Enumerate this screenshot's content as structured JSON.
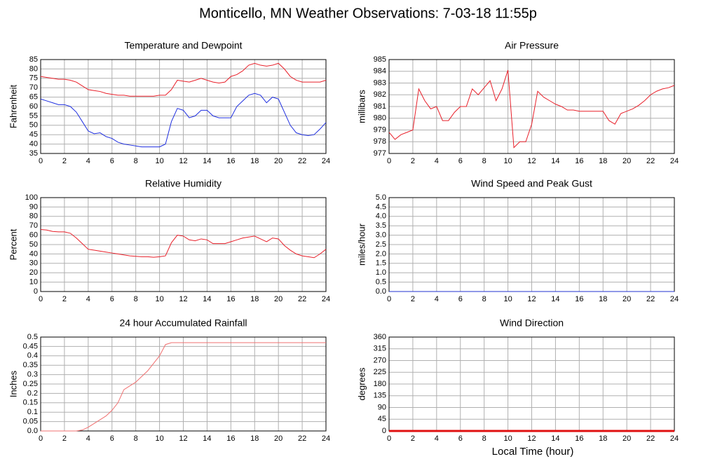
{
  "title": "Monticello, MN Weather Observations: 7-03-18 11:55p",
  "xlabel": "Local Time (hour)",
  "chart_data": [
    {
      "type": "line",
      "title": "Temperature and Dewpoint",
      "ylabel": "Fahrenheit",
      "grid": true,
      "xlim": [
        0,
        24
      ],
      "xticks": [
        0,
        2,
        4,
        6,
        8,
        10,
        12,
        14,
        16,
        18,
        20,
        22,
        24
      ],
      "ylim": [
        35,
        85
      ],
      "yticks": [
        35,
        40,
        45,
        50,
        55,
        60,
        65,
        70,
        75,
        80,
        85
      ],
      "x": [
        0,
        0.5,
        1,
        1.5,
        2,
        2.5,
        3,
        3.5,
        4,
        4.5,
        5,
        5.5,
        6,
        6.5,
        7,
        7.5,
        8,
        8.5,
        9,
        9.5,
        10,
        10.5,
        11,
        11.5,
        12,
        12.5,
        13,
        13.5,
        14,
        14.5,
        15,
        15.5,
        16,
        16.5,
        17,
        17.5,
        18,
        18.5,
        19,
        19.5,
        20,
        20.5,
        21,
        21.5,
        22,
        22.5,
        23,
        23.5,
        24
      ],
      "series": [
        {
          "color": "#e8202a",
          "values": [
            76,
            75.5,
            75,
            74.5,
            74.5,
            74,
            73,
            71,
            69,
            68.5,
            68,
            67,
            66.5,
            66,
            66,
            65.5,
            65.5,
            65.5,
            65.5,
            65.5,
            66,
            66,
            69,
            74,
            73.5,
            73,
            74,
            75,
            74,
            73,
            72.5,
            73,
            76,
            77,
            79,
            82,
            83,
            82,
            81.5,
            82,
            83,
            80,
            76,
            74,
            73,
            73,
            73,
            73,
            74
          ]
        },
        {
          "color": "#1f2fe0",
          "values": [
            64,
            63,
            62,
            61,
            61,
            60,
            57,
            52,
            47,
            45.5,
            46,
            44,
            43,
            41,
            40,
            39.5,
            39,
            38.5,
            38.5,
            38.5,
            38.5,
            40,
            52,
            59,
            58,
            54,
            55,
            58,
            58,
            55,
            54,
            54,
            54,
            60,
            63,
            66,
            67,
            66,
            62,
            65,
            64,
            57,
            50,
            46,
            45,
            44.5,
            45,
            48,
            51.5
          ]
        }
      ]
    },
    {
      "type": "line",
      "title": "Air Pressure",
      "ylabel": "millibars",
      "grid": true,
      "xlim": [
        0,
        24
      ],
      "xticks": [
        0,
        2,
        4,
        6,
        8,
        10,
        12,
        14,
        16,
        18,
        20,
        22,
        24
      ],
      "ylim": [
        977,
        985
      ],
      "yticks": [
        977,
        978,
        979,
        980,
        981,
        982,
        983,
        984,
        985
      ],
      "x": [
        0,
        0.5,
        1,
        1.5,
        2,
        2.5,
        3,
        3.5,
        4,
        4.5,
        5,
        5.5,
        6,
        6.5,
        7,
        7.5,
        8,
        8.5,
        9,
        9.5,
        10,
        10.5,
        11,
        11.5,
        12,
        12.5,
        13,
        13.5,
        14,
        14.5,
        15,
        15.5,
        16,
        16.5,
        17,
        17.5,
        18,
        18.5,
        19,
        19.5,
        20,
        20.5,
        21,
        21.5,
        22,
        22.5,
        23,
        23.5,
        24
      ],
      "series": [
        {
          "color": "#e8202a",
          "values": [
            978.8,
            978.2,
            978.6,
            978.8,
            979,
            982.5,
            981.5,
            980.8,
            981,
            979.8,
            979.8,
            980.5,
            981,
            981,
            982.5,
            982,
            982.6,
            983.2,
            981.5,
            982.5,
            984.1,
            977.5,
            978,
            978,
            979.5,
            982.3,
            981.8,
            981.5,
            981.2,
            981,
            980.7,
            980.7,
            980.6,
            980.6,
            980.6,
            980.6,
            980.6,
            979.8,
            979.5,
            980.4,
            980.6,
            980.8,
            981.1,
            981.5,
            982,
            982.3,
            982.5,
            982.6,
            982.8
          ]
        }
      ]
    },
    {
      "type": "line",
      "title": "Relative Humidity",
      "ylabel": "Percent",
      "grid": true,
      "xlim": [
        0,
        24
      ],
      "xticks": [
        0,
        2,
        4,
        6,
        8,
        10,
        12,
        14,
        16,
        18,
        20,
        22,
        24
      ],
      "ylim": [
        0,
        100
      ],
      "yticks": [
        0,
        10,
        20,
        30,
        40,
        50,
        60,
        70,
        80,
        90,
        100
      ],
      "x": [
        0,
        0.5,
        1,
        1.5,
        2,
        2.5,
        3,
        3.5,
        4,
        4.5,
        5,
        5.5,
        6,
        6.5,
        7,
        7.5,
        8,
        8.5,
        9,
        9.5,
        10,
        10.5,
        11,
        11.5,
        12,
        12.5,
        13,
        13.5,
        14,
        14.5,
        15,
        15.5,
        16,
        16.5,
        17,
        17.5,
        18,
        18.5,
        19,
        19.5,
        20,
        20.5,
        21,
        21.5,
        22,
        22.5,
        23,
        23.5,
        24
      ],
      "series": [
        {
          "color": "#e8202a",
          "values": [
            66,
            65.5,
            64,
            63.5,
            63.5,
            62,
            57,
            51,
            45,
            44,
            43,
            42,
            41,
            40,
            39,
            38,
            37.5,
            37,
            37,
            36.5,
            37,
            38,
            52,
            60,
            59,
            55,
            54,
            56,
            55,
            51,
            51,
            51,
            53,
            55,
            57,
            58,
            59,
            56,
            53,
            57,
            56,
            49,
            44,
            40,
            38,
            37,
            36,
            40,
            45
          ]
        }
      ]
    },
    {
      "type": "line",
      "title": "Wind Speed and Peak Gust",
      "ylabel": "miles/hour",
      "grid": true,
      "xlim": [
        0,
        24
      ],
      "xticks": [
        0,
        2,
        4,
        6,
        8,
        10,
        12,
        14,
        16,
        18,
        20,
        22,
        24
      ],
      "ylim": [
        0,
        5
      ],
      "yticks": [
        {
          "value": 0,
          "label": "0.0"
        },
        0.5,
        {
          "value": 1,
          "label": "1.0"
        },
        1.5,
        {
          "value": 2,
          "label": "2.0"
        },
        2.5,
        {
          "value": 3,
          "label": "3.0"
        },
        3.5,
        {
          "value": 4,
          "label": "4.0"
        },
        4.5,
        {
          "value": 5,
          "label": "5.0"
        }
      ],
      "x": [
        0,
        24
      ],
      "series": [
        {
          "color": "#2030d0",
          "values": [
            0,
            0
          ]
        }
      ]
    },
    {
      "type": "line",
      "title": "24 hour Accumulated Rainfall",
      "ylabel": "Inches",
      "grid": true,
      "xlim": [
        0,
        24
      ],
      "xticks": [
        0,
        2,
        4,
        6,
        8,
        10,
        12,
        14,
        16,
        18,
        20,
        22,
        24
      ],
      "ylim": [
        0,
        0.5
      ],
      "yticks": [
        {
          "value": 0,
          "label": "0.0"
        },
        0.05,
        0.1,
        0.15,
        0.2,
        0.25,
        0.3,
        0.35,
        0.4,
        0.45,
        0.5
      ],
      "x": [
        0,
        0.5,
        1,
        1.5,
        2,
        2.5,
        3,
        3.5,
        4,
        4.5,
        5,
        5.5,
        6,
        6.5,
        7,
        7.5,
        8,
        8.5,
        9,
        9.5,
        10,
        10.5,
        11,
        11.5,
        12,
        12.5,
        13,
        13.5,
        14,
        14.5,
        15,
        15.5,
        16,
        16.5,
        17,
        17.5,
        18,
        18.5,
        19,
        19.5,
        20,
        20.5,
        21,
        21.5,
        22,
        22.5,
        23,
        23.5,
        24
      ],
      "series": [
        {
          "color": "#f07070",
          "values": [
            0,
            0,
            0,
            0,
            0,
            0,
            0,
            0.005,
            0.02,
            0.04,
            0.06,
            0.08,
            0.11,
            0.15,
            0.22,
            0.24,
            0.26,
            0.29,
            0.32,
            0.36,
            0.4,
            0.46,
            0.47,
            0.47,
            0.47,
            0.47,
            0.47,
            0.47,
            0.47,
            0.47,
            0.47,
            0.47,
            0.47,
            0.47,
            0.47,
            0.47,
            0.47,
            0.47,
            0.47,
            0.47,
            0.47,
            0.47,
            0.47,
            0.47,
            0.47,
            0.47,
            0.47,
            0.47,
            0.47
          ]
        }
      ]
    },
    {
      "type": "line",
      "title": "Wind Direction",
      "ylabel": "degrees",
      "grid": true,
      "xlim": [
        0,
        24
      ],
      "xticks": [
        0,
        2,
        4,
        6,
        8,
        10,
        12,
        14,
        16,
        18,
        20,
        22,
        24
      ],
      "ylim": [
        0,
        360
      ],
      "yticks": [
        0,
        45,
        90,
        135,
        180,
        225,
        270,
        315,
        360
      ],
      "x": [
        0,
        24
      ],
      "series": [
        {
          "color": "#e01010",
          "line_width": 3,
          "values": [
            0,
            0
          ]
        }
      ]
    }
  ]
}
